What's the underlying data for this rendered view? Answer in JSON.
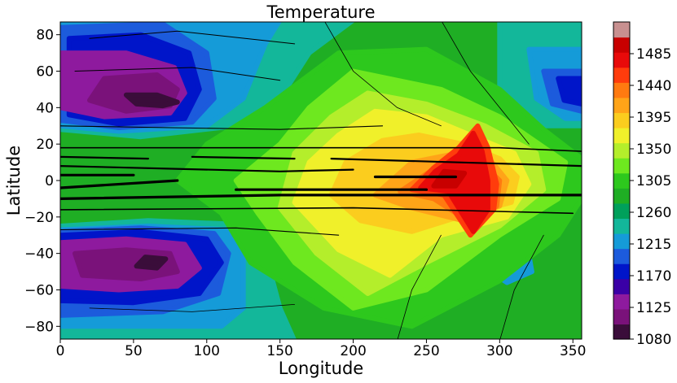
{
  "chart_data": {
    "type": "heatmap",
    "title": "Temperature",
    "xlabel": "Longitude",
    "ylabel": "Latitude",
    "xlim": [
      0,
      356
    ],
    "ylim": [
      -87,
      87
    ],
    "x_ticks": [
      0,
      50,
      100,
      150,
      200,
      250,
      300,
      350
    ],
    "y_ticks": [
      80,
      60,
      40,
      20,
      0,
      -20,
      -40,
      -60,
      -80
    ],
    "y_tick_labels": [
      "80",
      "60",
      "40",
      "20",
      "0",
      "−20",
      "−40",
      "−60",
      "−80"
    ],
    "colorbar": {
      "label": "",
      "range": [
        1080,
        1530
      ],
      "ticks": [
        1080,
        1125,
        1170,
        1215,
        1260,
        1305,
        1350,
        1395,
        1440,
        1485
      ],
      "colors": [
        "#3a0d3a",
        "#7a127a",
        "#8e1a9e",
        "#3a00a6",
        "#0015c9",
        "#1c5bdc",
        "#159bd8",
        "#13b79a",
        "#00a05b",
        "#1fae24",
        "#2dc81d",
        "#6ee81f",
        "#b4ee2b",
        "#f0f02a",
        "#fbcd1e",
        "#ffa418",
        "#ff7a10",
        "#ff3c0c",
        "#e80a0a",
        "#c80000",
        "#c89090"
      ]
    },
    "features": [
      {
        "name": "cold-vortex-north",
        "lon": 65,
        "lat": 43,
        "value": 1080
      },
      {
        "name": "cold-vortex-south",
        "lon": 60,
        "lat": -45,
        "value": 1080
      },
      {
        "name": "cold-region-north-east",
        "lon": 350,
        "lat": 45,
        "value": 1170
      },
      {
        "name": "cold-spot-south-east",
        "lon": 305,
        "lat": -40,
        "value": 1190
      },
      {
        "name": "hot-spot-equatorial",
        "lon": 270,
        "lat": 0,
        "value": 1485
      },
      {
        "name": "hot-arm-north",
        "lon": 285,
        "lat": 15,
        "value": 1470
      },
      {
        "name": "hot-arm-south",
        "lon": 285,
        "lat": -20,
        "value": 1470
      }
    ]
  }
}
